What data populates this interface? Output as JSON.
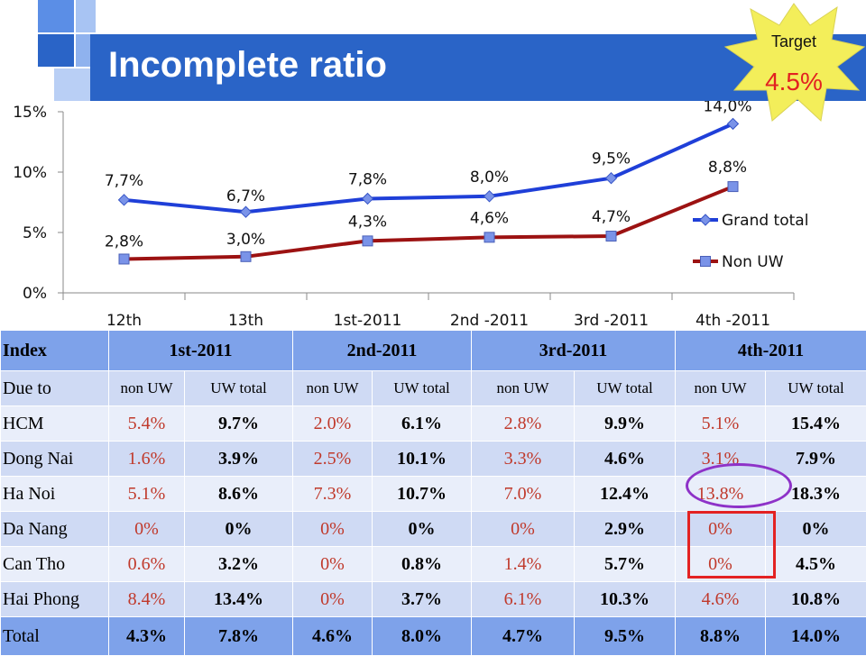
{
  "page": {
    "title": "Incomplete ratio"
  },
  "target": {
    "label": "Target",
    "value": "4.5%",
    "star_color": "#f3ee5a",
    "value_color": "#e22121"
  },
  "colors": {
    "title_band": "#2a64c7",
    "grand_total": "#1f3fd8",
    "non_uw": "#9c1212",
    "marker": "#7a93e8",
    "header_bg": "#7ea2ea",
    "row_a": "#cfdaf4",
    "row_b": "#e9eefa"
  },
  "chart_data": {
    "type": "line",
    "categories": [
      "12th",
      "13th",
      "1st-2011",
      "2nd -2011",
      "3rd -2011",
      "4th -2011"
    ],
    "series": [
      {
        "name": "Grand total",
        "values": [
          7.7,
          6.7,
          7.8,
          8.0,
          9.5,
          14.0
        ],
        "labels": [
          "7,7%",
          "6,7%",
          "7,8%",
          "8,0%",
          "9,5%",
          "14,0%"
        ]
      },
      {
        "name": "Non UW",
        "values": [
          2.8,
          3.0,
          4.3,
          4.6,
          4.7,
          8.8
        ],
        "labels": [
          "2,8%",
          "3,0%",
          "4,3%",
          "4,6%",
          "4,7%",
          "8,8%"
        ]
      }
    ],
    "ylim": [
      0,
      15
    ],
    "yticks": [
      0,
      5,
      10,
      15
    ],
    "ytick_labels": [
      "0%",
      "5%",
      "10%",
      "15%"
    ],
    "grid": false,
    "legend": "right"
  },
  "table": {
    "index_label": "Index",
    "due_label": "Due to",
    "quarters": [
      "1st-2011",
      "2nd-2011",
      "3rd-2011",
      "4th-2011"
    ],
    "sub_headers": [
      "non UW",
      "UW total"
    ],
    "rows": [
      {
        "name": "HCM",
        "cells": [
          "5.4%",
          "9.7%",
          "2.0%",
          "6.1%",
          "2.8%",
          "9.9%",
          "5.1%",
          "15.4%"
        ]
      },
      {
        "name": "Dong Nai",
        "cells": [
          "1.6%",
          "3.9%",
          "2.5%",
          "10.1%",
          "3.3%",
          "4.6%",
          "3.1%",
          "7.9%"
        ]
      },
      {
        "name": "Ha Noi",
        "cells": [
          "5.1%",
          "8.6%",
          "7.3%",
          "10.7%",
          "7.0%",
          "12.4%",
          "13.8%",
          "18.3%"
        ]
      },
      {
        "name": "Da Nang",
        "cells": [
          "0%",
          "0%",
          "0%",
          "0%",
          "0%",
          "2.9%",
          "0%",
          "0%"
        ]
      },
      {
        "name": "Can Tho",
        "cells": [
          "0.6%",
          "3.2%",
          "0%",
          "0.8%",
          "1.4%",
          "5.7%",
          "0%",
          "4.5%"
        ]
      },
      {
        "name": "Hai Phong",
        "cells": [
          "8.4%",
          "13.4%",
          "0%",
          "3.7%",
          "6.1%",
          "10.3%",
          "4.6%",
          "10.8%"
        ]
      }
    ],
    "total": {
      "name": "Total",
      "cells": [
        "4.3%",
        "7.8%",
        "4.6%",
        "8.0%",
        "4.7%",
        "9.5%",
        "8.8%",
        "14.0%"
      ]
    }
  }
}
